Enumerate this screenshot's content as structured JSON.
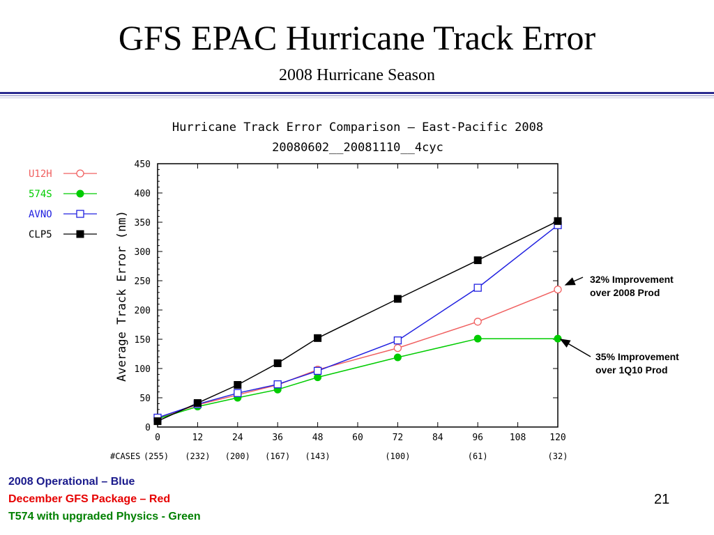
{
  "slide": {
    "title": "GFS EPAC Hurricane Track Error",
    "subtitle": "2008 Hurricane Season",
    "page_number": "21"
  },
  "annotations": [
    {
      "line1": "32% Improvement",
      "line2": "over 2008 Prod"
    },
    {
      "line1": "35% Improvement",
      "line2": "over 1Q10 Prod"
    }
  ],
  "footer": [
    {
      "text": "2008 Operational – Blue",
      "color": "#1a1a8c"
    },
    {
      "text": "December GFS Package – Red",
      "color": "#e60000"
    },
    {
      "text": "T574 with upgraded Physics - Green",
      "color": "#008000"
    }
  ],
  "chart_data": {
    "type": "line",
    "title": "Hurricane Track Error Comparison – East-Pacific 2008",
    "subtitle": "20080602__20081110__4cyc",
    "xlabel": "",
    "ylabel": "Average Track Error (nm)",
    "xlim": [
      0,
      120
    ],
    "ylim": [
      0,
      450
    ],
    "x_ticks": [
      "0",
      "12",
      "24",
      "36",
      "48",
      "60",
      "72",
      "84",
      "96",
      "108",
      "120"
    ],
    "y_ticks": [
      "0",
      "50",
      "100",
      "150",
      "200",
      "250",
      "300",
      "350",
      "400",
      "450"
    ],
    "cases_label": "#CASES",
    "cases": [
      {
        "x": 0,
        "label": "(255)"
      },
      {
        "x": 12,
        "label": "(232)"
      },
      {
        "x": 24,
        "label": "(200)"
      },
      {
        "x": 36,
        "label": "(167)"
      },
      {
        "x": 48,
        "label": "(143)"
      },
      {
        "x": 72,
        "label": "(100)"
      },
      {
        "x": 96,
        "label": "(61)"
      },
      {
        "x": 120,
        "label": "(32)"
      }
    ],
    "x": [
      0,
      12,
      24,
      36,
      48,
      72,
      96,
      120
    ],
    "series": [
      {
        "name": "U12H",
        "color": "#f06060",
        "marker": "open-circle",
        "values": [
          15,
          38,
          55,
          72,
          98,
          135,
          180,
          235
        ]
      },
      {
        "name": "574S",
        "color": "#00cc00",
        "marker": "filled-circle",
        "values": [
          14,
          35,
          50,
          64,
          85,
          119,
          151,
          151
        ]
      },
      {
        "name": "AVNO",
        "color": "#2020e0",
        "marker": "open-square",
        "values": [
          16,
          39,
          58,
          73,
          96,
          148,
          238,
          345
        ]
      },
      {
        "name": "CLP5",
        "color": "#000000",
        "marker": "filled-square",
        "values": [
          10,
          41,
          72,
          109,
          152,
          219,
          285,
          352
        ]
      }
    ],
    "grid": false,
    "legend_position": "left"
  }
}
